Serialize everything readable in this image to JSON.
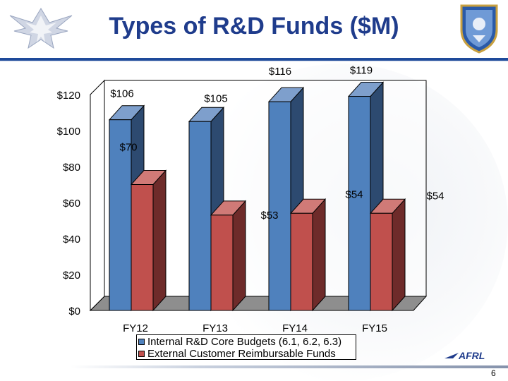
{
  "slide": {
    "title": "Types of R&D Funds ($M)",
    "page_number": "6",
    "footer_logo_text": "AFRL"
  },
  "colors": {
    "title": "#1f3c8c",
    "internal_bar": "#4f81bd",
    "external_bar": "#c0504d"
  },
  "icons": {
    "left_logo": "air-force-symbol-icon",
    "right_logo": "afrl-shield-icon"
  },
  "chart_data": {
    "type": "bar",
    "style": "3d-clustered",
    "categories": [
      "FY12",
      "FY13",
      "FY14",
      "FY15"
    ],
    "series": [
      {
        "name": "Internal R&D Core Budgets (6.1, 6.2, 6.3)",
        "values": [
          106,
          105,
          116,
          119
        ],
        "labels": [
          "$106",
          "$105",
          "$116",
          "$119"
        ]
      },
      {
        "name": "External Customer Reimbursable Funds",
        "values": [
          70,
          53,
          54,
          54
        ],
        "labels": [
          "$70",
          "$53",
          "$54",
          "$54"
        ]
      }
    ],
    "yticks": [
      "$0",
      "$20",
      "$40",
      "$60",
      "$80",
      "$100",
      "$120"
    ],
    "ylim": [
      0,
      120
    ],
    "grid": false,
    "legend": "bottom"
  }
}
